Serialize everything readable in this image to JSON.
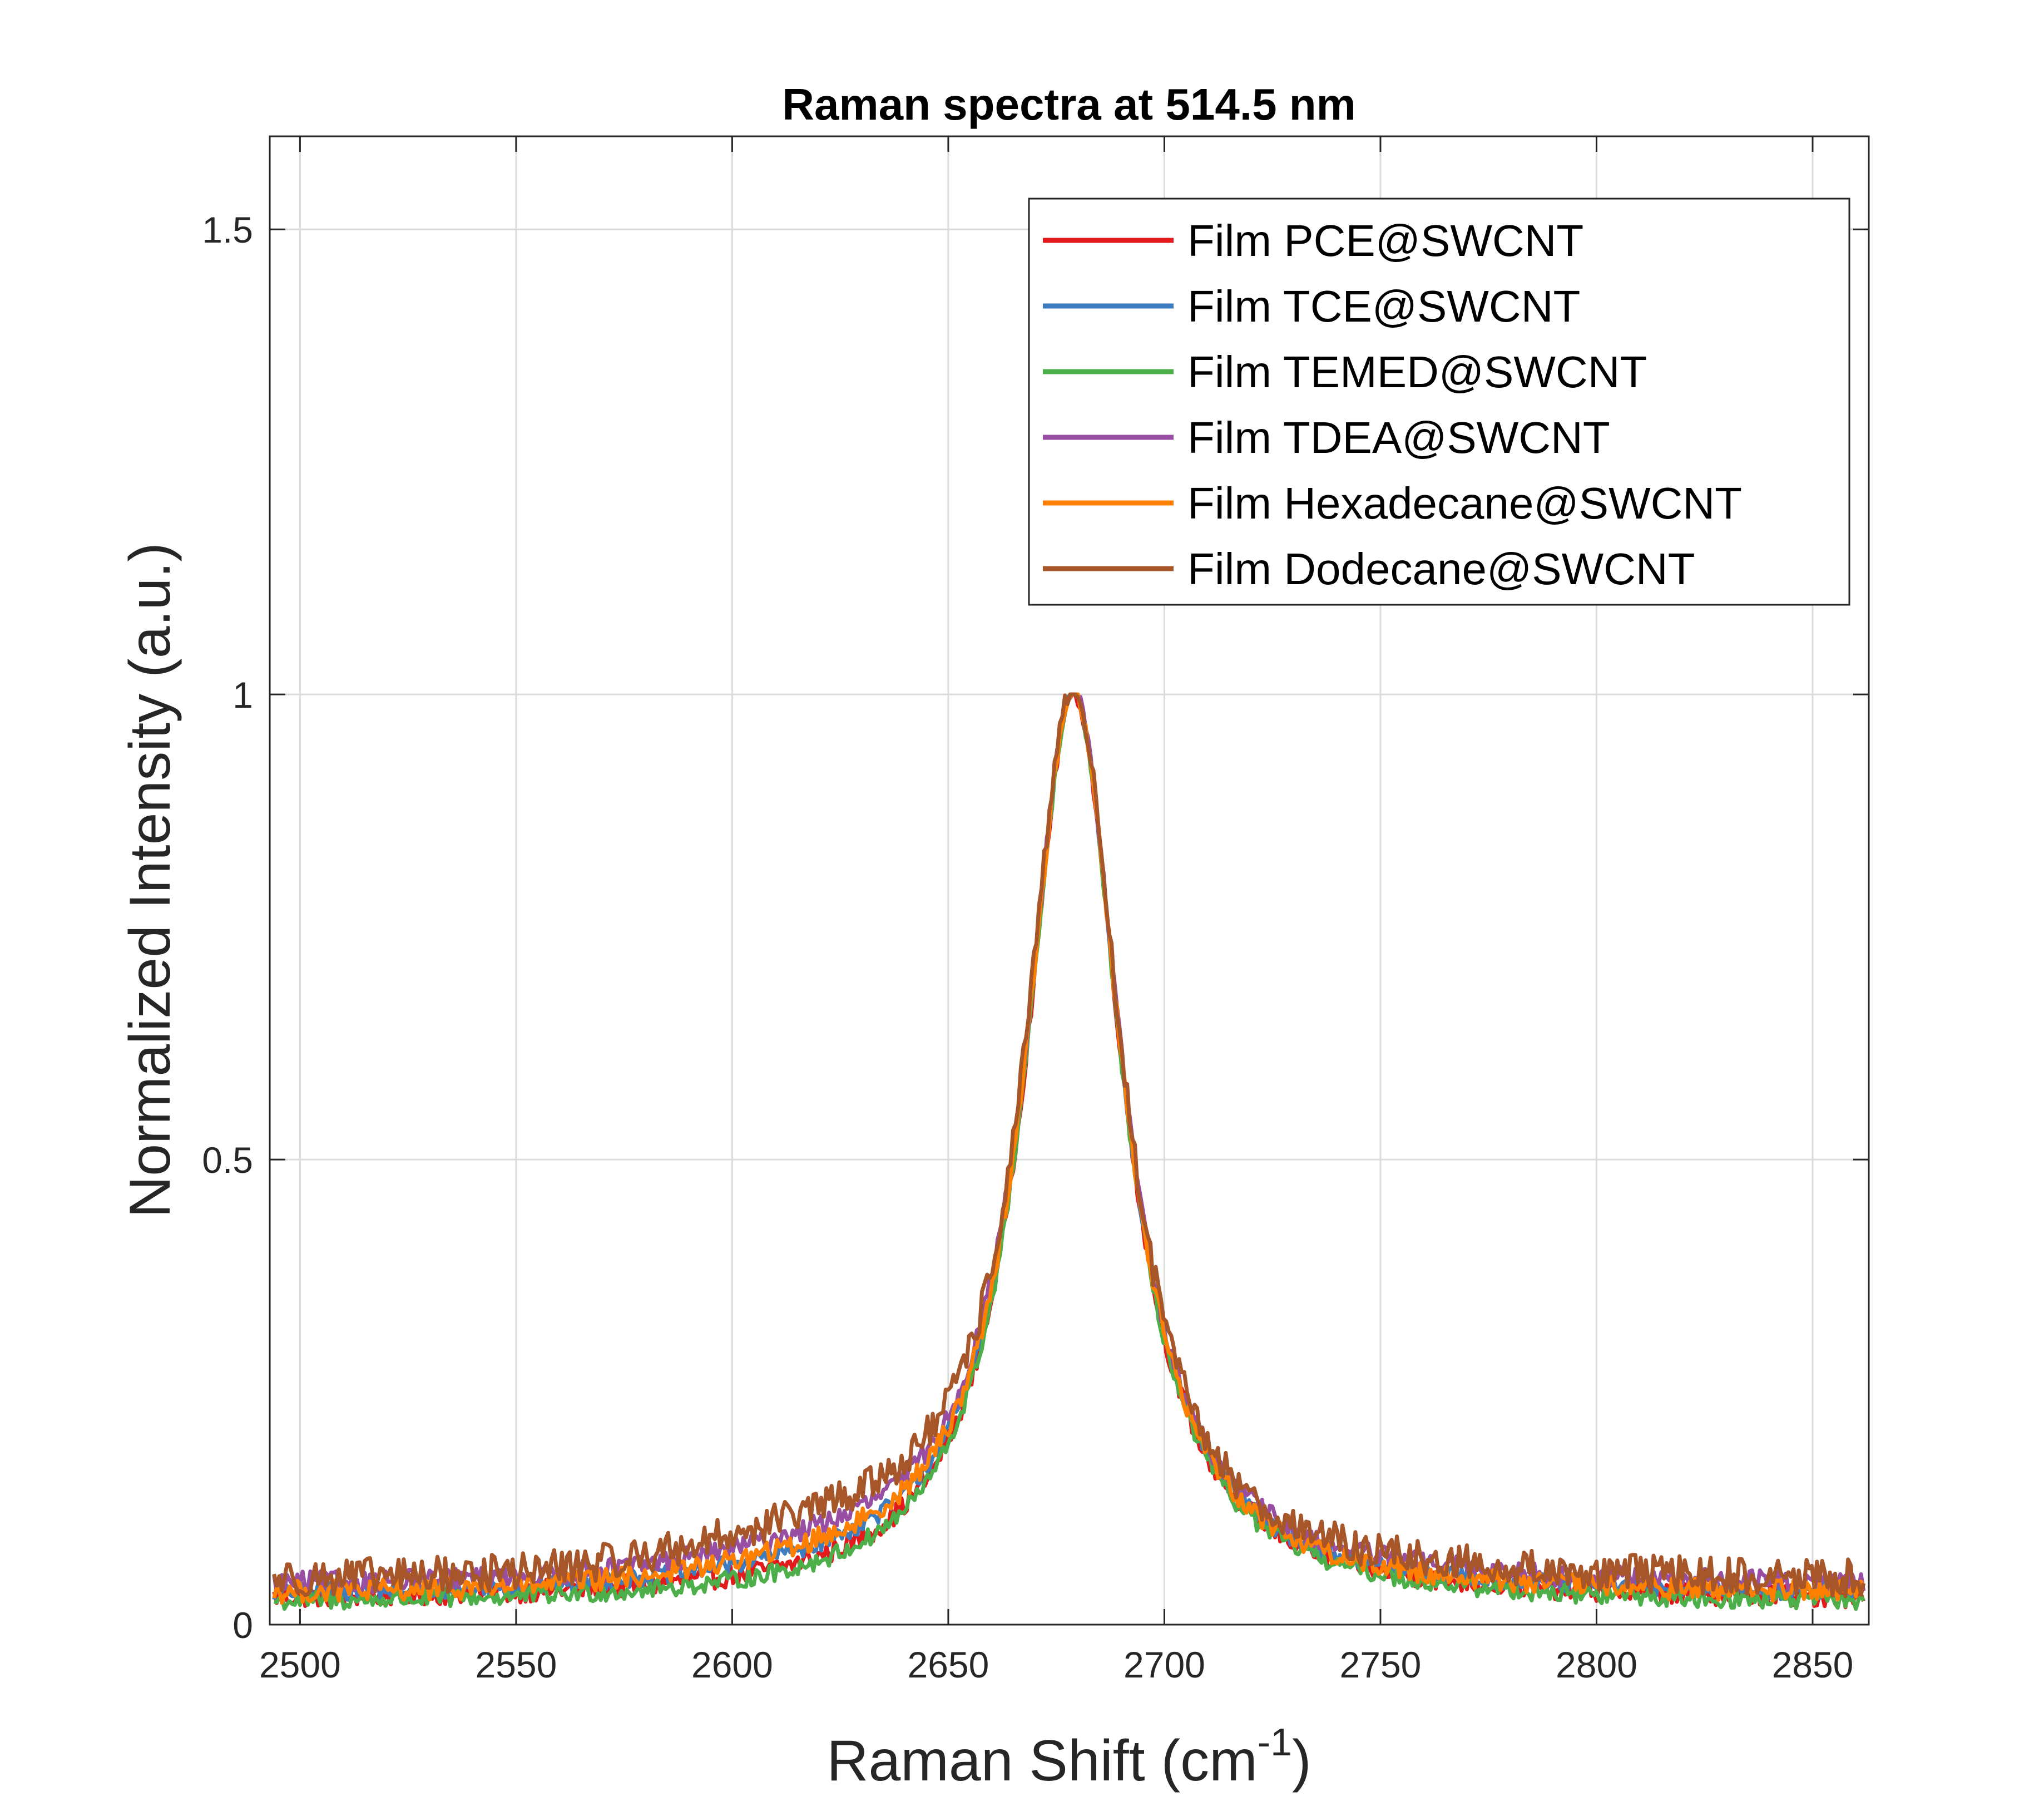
{
  "chart_data": {
    "type": "line",
    "title": "Raman spectra at 514.5 nm",
    "xlabel": "Raman Shift (cm",
    "xlabel_superscript": "-1",
    "xlabel_suffix": ")",
    "ylabel": "Normalized Intensity (a.u.)",
    "xlim": [
      2493,
      2863
    ],
    "ylim": [
      0,
      1.6
    ],
    "x_ticks": [
      2500,
      2550,
      2600,
      2650,
      2700,
      2750,
      2800,
      2850
    ],
    "y_ticks": [
      0,
      0.5,
      1,
      1.5
    ],
    "y_tick_labels": [
      "0",
      "0.5",
      "1",
      "1.5"
    ],
    "grid": true,
    "legend_position": "top-right",
    "peak": {
      "x0": 2679,
      "hwhm": 13.5,
      "max": 1.0
    },
    "series": [
      {
        "name": "Film PCE@SWCNT",
        "color": "#e31a1c",
        "baseline": 0.025,
        "shoulder": 0.0,
        "noise": 0.012
      },
      {
        "name": "Film TCE@SWCNT",
        "color": "#3d7dbf",
        "baseline": 0.03,
        "shoulder": 0.01,
        "noise": 0.01
      },
      {
        "name": "Film TEMED@SWCNT",
        "color": "#4daf4a",
        "baseline": 0.02,
        "shoulder": 0.0,
        "noise": 0.01
      },
      {
        "name": "Film TDEA@SWCNT",
        "color": "#984ea3",
        "baseline": 0.04,
        "shoulder": 0.02,
        "noise": 0.012
      },
      {
        "name": "Film Hexadecane@SWCNT",
        "color": "#ff7f00",
        "baseline": 0.03,
        "shoulder": 0.015,
        "noise": 0.012
      },
      {
        "name": "Film Dodecane@SWCNT",
        "color": "#a65628",
        "baseline": 0.045,
        "shoulder": 0.035,
        "noise": 0.02
      }
    ]
  }
}
